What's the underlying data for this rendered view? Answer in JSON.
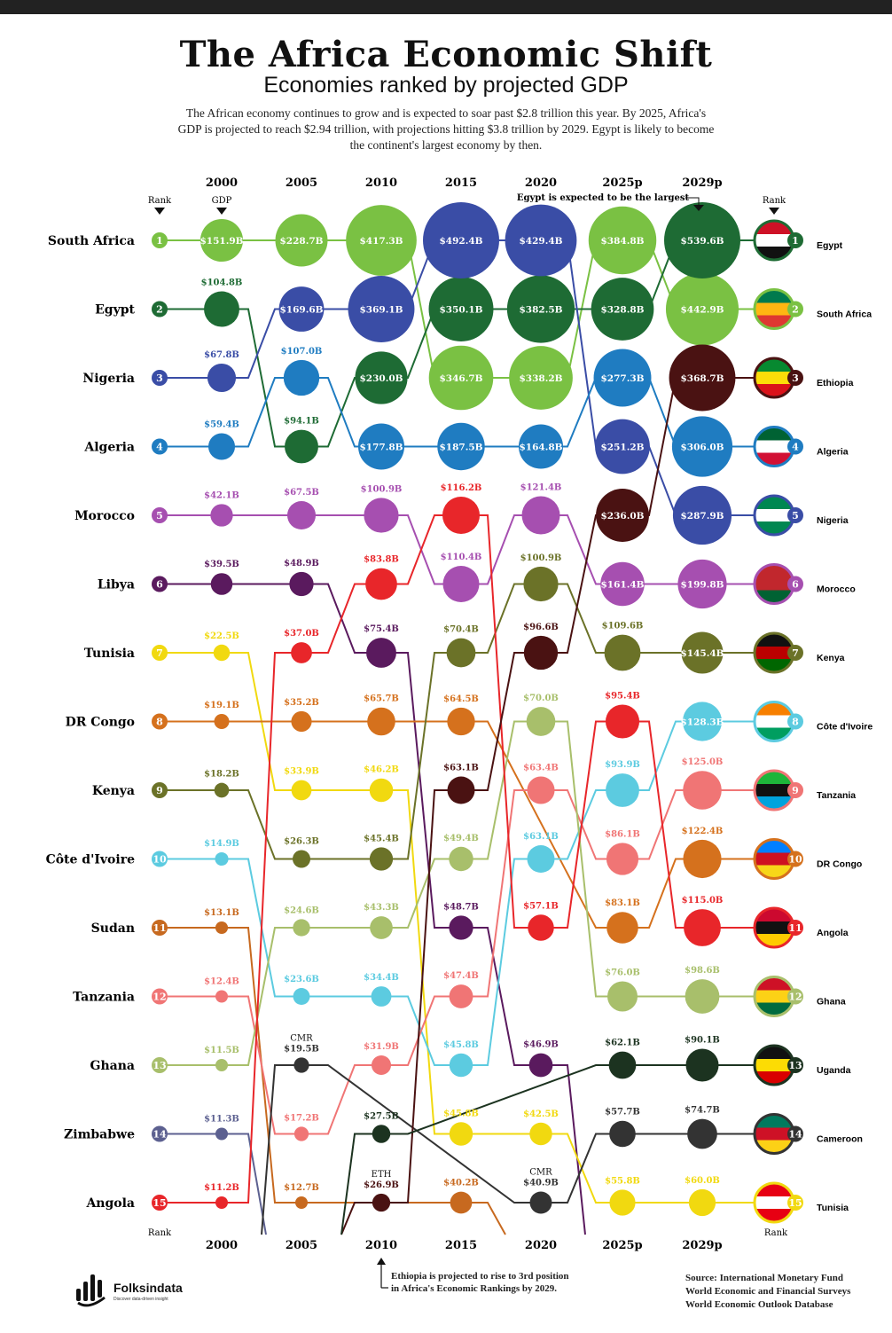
{
  "header": {
    "title": "The Africa Economic Shift",
    "subtitle": "Economies ranked by projected GDP",
    "intro": "The African economy continues to grow and is expected to soar past $2.8 trillion this year. By 2025, Africa's GDP is projected to reach $2.94 trillion, with projections hitting $3.8 trillion by 2029. Egypt is likely to become the continent's largest economy by then."
  },
  "chart_data": {
    "type": "bump",
    "years": [
      "2000",
      "2005",
      "2010",
      "2015",
      "2020",
      "2025p",
      "2029p"
    ],
    "rank_label": "Rank",
    "gdp_label": "GDP",
    "note_2029": "Egypt is expected to be the largest",
    "countries": [
      {
        "name": "South Africa",
        "color": "#7ac143",
        "ranks": [
          1,
          1,
          1,
          3,
          3,
          1,
          2
        ],
        "values": [
          "$151.9B",
          "$228.7B",
          "$417.3B",
          "$346.7B",
          "$338.2B",
          "$384.8B",
          "$442.9B"
        ]
      },
      {
        "name": "Egypt",
        "color": "#1e6b34",
        "ranks": [
          2,
          4,
          3,
          2,
          2,
          2,
          1
        ],
        "values": [
          "$104.8B",
          "$94.1B",
          "$230.0B",
          "$350.1B",
          "$382.5B",
          "$328.8B",
          "$539.6B"
        ]
      },
      {
        "name": "Nigeria",
        "color": "#3a4da6",
        "ranks": [
          3,
          2,
          2,
          1,
          1,
          4,
          5
        ],
        "values": [
          "$67.8B",
          "$169.6B",
          "$369.1B",
          "$492.4B",
          "$429.4B",
          "$251.2B",
          "$287.9B"
        ]
      },
      {
        "name": "Algeria",
        "color": "#1f7cc1",
        "ranks": [
          4,
          3,
          4,
          4,
          4,
          3,
          4
        ],
        "values": [
          "$59.4B",
          "$107.0B",
          "$177.8B",
          "$187.5B",
          "$164.8B",
          "$277.3B",
          "$306.0B"
        ]
      },
      {
        "name": "Morocco",
        "color": "#a64fb0",
        "ranks": [
          5,
          5,
          5,
          6,
          5,
          6,
          6
        ],
        "values": [
          "$42.1B",
          "$67.5B",
          "$100.9B",
          "$110.4B",
          "$121.4B",
          "$161.4B",
          "$199.8B"
        ]
      },
      {
        "name": "Libya",
        "color": "#5a1a5e",
        "ranks": [
          6,
          6,
          7,
          11,
          13,
          null,
          null
        ],
        "values": [
          "$39.5B",
          "$48.9B",
          "$75.4B",
          "$48.7B",
          "$46.9B",
          "",
          ""
        ]
      },
      {
        "name": "Tunisia",
        "color": "#f1d910",
        "ranks": [
          7,
          9,
          9,
          14,
          14,
          15,
          15
        ],
        "values": [
          "$22.5B",
          "$33.9B",
          "$46.2B",
          "$45.8B",
          "$42.5B",
          "$55.8B",
          "$60.0B"
        ]
      },
      {
        "name": "DR Congo",
        "color": "#d5711d",
        "ranks": [
          8,
          8,
          8,
          8,
          null,
          11,
          10
        ],
        "values": [
          "$19.1B",
          "$35.2B",
          "$65.7B",
          "$64.5B",
          "",
          "$83.1B",
          "$122.4B"
        ]
      },
      {
        "name": "Kenya",
        "color": "#6b7228",
        "ranks": [
          9,
          10,
          10,
          7,
          6,
          7,
          7
        ],
        "values": [
          "$18.2B",
          "$26.3B",
          "$45.4B",
          "$70.4B",
          "$100.9B",
          "$109.6B",
          "$145.4B"
        ]
      },
      {
        "name": "Côte d'Ivoire",
        "color": "#5ccbe0",
        "ranks": [
          10,
          12,
          12,
          13,
          10,
          9,
          8
        ],
        "values": [
          "$14.9B",
          "$23.6B",
          "$34.4B",
          "$45.8B",
          "$63.1B",
          "$93.9B",
          "$128.3B"
        ]
      },
      {
        "name": "Sudan",
        "color": "#c7691f",
        "ranks": [
          11,
          15,
          null,
          15,
          null,
          null,
          null
        ],
        "values": [
          "$13.1B",
          "$12.7B",
          "",
          "$40.2B",
          "",
          "",
          ""
        ]
      },
      {
        "name": "Tanzania",
        "color": "#f07575",
        "ranks": [
          12,
          14,
          13,
          12,
          9,
          10,
          9
        ],
        "values": [
          "$12.4B",
          "$17.2B",
          "$31.9B",
          "$47.4B",
          "$63.4B",
          "$86.1B",
          "$125.0B"
        ]
      },
      {
        "name": "Ghana",
        "color": "#a8bf6b",
        "ranks": [
          13,
          11,
          11,
          10,
          8,
          12,
          12
        ],
        "values": [
          "$11.5B",
          "$24.6B",
          "$43.3B",
          "$49.4B",
          "$70.0B",
          "$76.0B",
          "$98.6B"
        ]
      },
      {
        "name": "Zimbabwe",
        "color": "#5c6090",
        "ranks": [
          14,
          null,
          null,
          null,
          null,
          null,
          null
        ],
        "values": [
          "$11.3B",
          "",
          "",
          "",
          "",
          "",
          ""
        ]
      },
      {
        "name": "Angola",
        "color": "#e8262a",
        "ranks": [
          15,
          7,
          6,
          5,
          11,
          8,
          11
        ],
        "values": [
          "$11.2B",
          "$37.0B",
          "$83.8B",
          "$116.2B",
          "$57.1B",
          "$95.4B",
          "$115.0B"
        ]
      },
      {
        "name": "Cameroon",
        "color": "#333333",
        "ranks": [
          null,
          13,
          null,
          null,
          15,
          14,
          14
        ],
        "values": [
          "",
          "$19.5B",
          "",
          "",
          "$40.9B",
          "$57.7B",
          "$74.7B"
        ],
        "tags": [
          "",
          "CMR",
          "",
          "",
          "CMR",
          "",
          ""
        ]
      },
      {
        "name": "Ethiopia",
        "color": "#4a1212",
        "ranks": [
          null,
          null,
          15,
          9,
          7,
          5,
          3
        ],
        "values": [
          "",
          "",
          "$26.9B",
          "$63.1B",
          "$96.6B",
          "$236.0B",
          "$368.7B"
        ],
        "tags": [
          "",
          "",
          "ETH",
          "",
          "",
          "",
          ""
        ]
      },
      {
        "name": "Uganda",
        "color": "#1c3320",
        "ranks": [
          null,
          null,
          14,
          null,
          null,
          13,
          13
        ],
        "values": [
          "",
          "",
          "$27.5B",
          "",
          "",
          "$62.1B",
          "$90.1B"
        ]
      }
    ],
    "right_ranking": [
      "Egypt",
      "South Africa",
      "Ethiopia",
      "Algeria",
      "Nigeria",
      "Morocco",
      "Kenya",
      "Côte d'Ivoire",
      "Tanzania",
      "DR Congo",
      "Angola",
      "Ghana",
      "Uganda",
      "Cameroon",
      "Tunisia"
    ],
    "flag_icons": [
      "egypt-flag-icon",
      "south-africa-flag-icon",
      "ethiopia-flag-icon",
      "algeria-flag-icon",
      "nigeria-flag-icon",
      "morocco-flag-icon",
      "kenya-flag-icon",
      "cote-divoire-flag-icon",
      "tanzania-flag-icon",
      "dr-congo-flag-icon",
      "angola-flag-icon",
      "ghana-flag-icon",
      "uganda-flag-icon",
      "cameroon-flag-icon",
      "tunisia-flag-icon"
    ]
  },
  "footer": {
    "logo_name": "Folksindata",
    "logo_tagline": "Discover data-driven insight",
    "ethiopia_note_1": "Ethiopia is projected to rise to 3rd position",
    "ethiopia_note_2": "in Africa's Economic Rankings by 2029.",
    "source_1": "Source: International Monetary Fund",
    "source_2": "World Economic and Financial Surveys",
    "source_3": "World Economic Outlook Database"
  }
}
